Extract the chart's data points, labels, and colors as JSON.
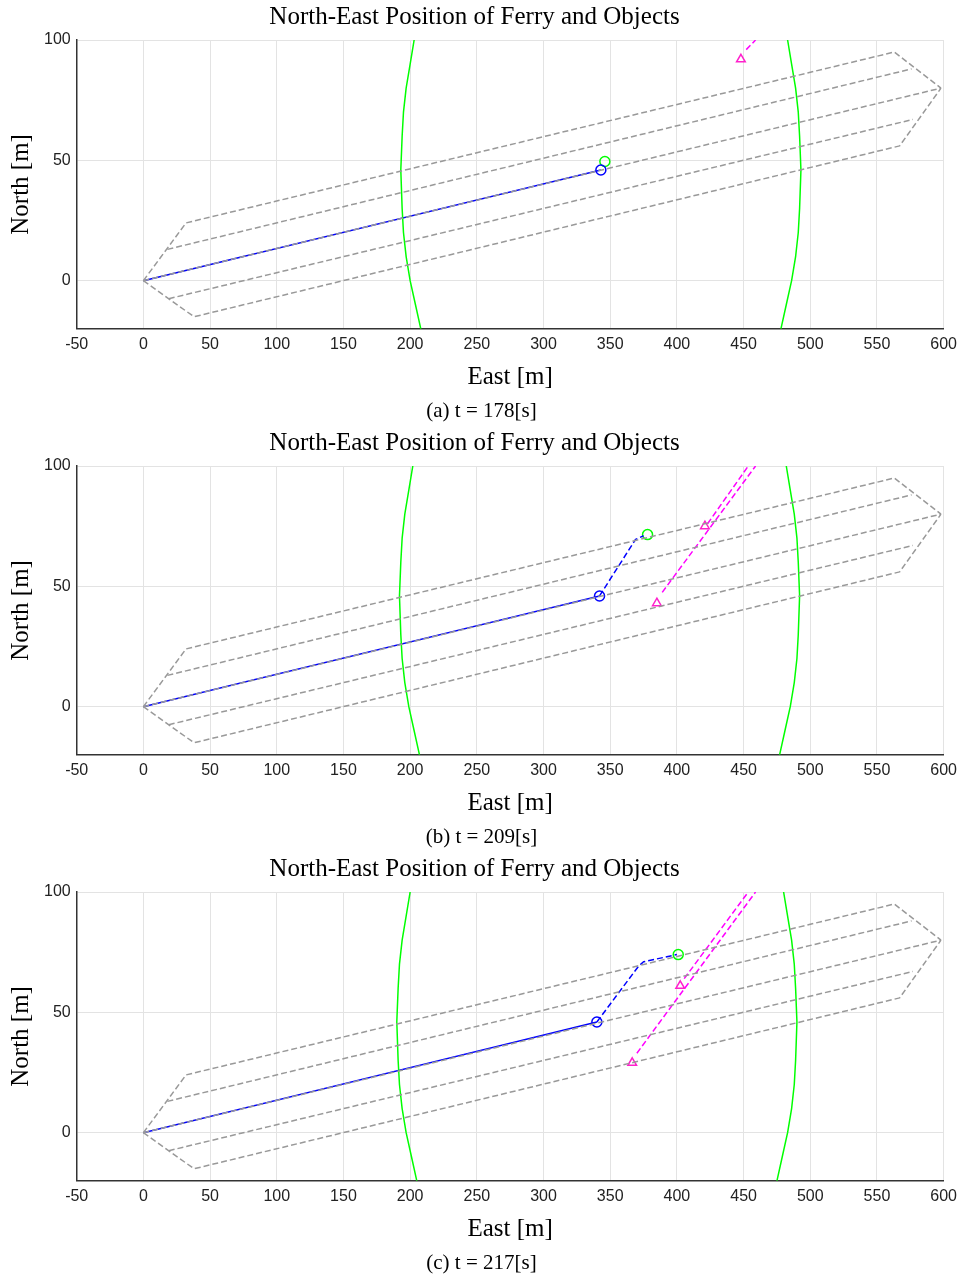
{
  "chart_data": [
    {
      "type": "line",
      "title": "North-East Position of Ferry and Objects",
      "xlabel": "East [m]",
      "ylabel": "North [m]",
      "annotations": [
        "(a) t = 178[s]"
      ],
      "xlim": [
        -50,
        600
      ],
      "ylim": [
        -20,
        100
      ],
      "xticks": [
        -50,
        0,
        50,
        100,
        150,
        200,
        250,
        300,
        350,
        400,
        450,
        500,
        550,
        600
      ],
      "yticks": [
        0,
        50,
        100
      ],
      "grid": true,
      "series": [
        {
          "color": "#999999",
          "line_style": "dashed",
          "x": [
            0,
            32,
            563,
            598
          ],
          "values": [
            0,
            24,
            95,
            80
          ]
        },
        {
          "color": "#999999",
          "line_style": "dashed",
          "x": [
            0,
            38,
            567,
            598
          ],
          "values": [
            0,
            -15,
            56,
            80
          ]
        },
        {
          "color": "#999999",
          "line_style": "dashed",
          "x": [
            18,
            576
          ],
          "values": [
            13,
            88
          ]
        },
        {
          "color": "#999999",
          "line_style": "dashed",
          "x": [
            0,
            598
          ],
          "values": [
            0,
            80
          ]
        },
        {
          "color": "#999999",
          "line_style": "dashed",
          "x": [
            19,
            577
          ],
          "values": [
            -7.5,
            67
          ]
        },
        {
          "color": "#00ff00",
          "line_style": "solid",
          "x": [
            208,
            204,
            200,
            197,
            195,
            194,
            193,
            194,
            195,
            197,
            200,
            203
          ],
          "values": [
            -20,
            -10,
            0,
            10,
            20,
            30,
            46,
            60,
            70,
            80,
            90,
            100
          ]
        },
        {
          "color": "#00ff00",
          "line_style": "solid",
          "x": [
            478,
            482,
            486,
            489,
            491,
            492,
            493,
            492,
            491,
            489,
            486,
            483
          ],
          "values": [
            -20,
            -10,
            0,
            10,
            20,
            30,
            46,
            60,
            70,
            80,
            90,
            100
          ]
        },
        {
          "color": "#0000ff",
          "line_style": "solid",
          "x": [
            0,
            343
          ],
          "values": [
            0,
            46
          ]
        },
        {
          "type": "scatter",
          "marker": "circle",
          "color": "#0000ff",
          "x": [
            343
          ],
          "values": [
            46
          ]
        },
        {
          "type": "scatter",
          "marker": "circle",
          "color": "#00ff00",
          "x": [
            346
          ],
          "values": [
            49.5
          ]
        },
        {
          "color": "#ff00ff",
          "line_style": "dashed",
          "x": [
            452,
            459
          ],
          "values": [
            96,
            100
          ]
        },
        {
          "type": "scatter",
          "marker": "triangle",
          "color": "#ff22cc",
          "x": [
            448
          ],
          "values": [
            92
          ]
        }
      ]
    },
    {
      "type": "line",
      "title": "North-East Position of Ferry and Objects",
      "xlabel": "East [m]",
      "ylabel": "North [m]",
      "annotations": [
        "(b) t = 209[s]"
      ],
      "xlim": [
        -50,
        600
      ],
      "ylim": [
        -20,
        100
      ],
      "xticks": [
        -50,
        0,
        50,
        100,
        150,
        200,
        250,
        300,
        350,
        400,
        450,
        500,
        550,
        600
      ],
      "yticks": [
        0,
        50,
        100
      ],
      "grid": true,
      "series": [
        {
          "color": "#999999",
          "line_style": "dashed",
          "x": [
            0,
            32,
            563,
            598
          ],
          "values": [
            0,
            24,
            95,
            80
          ]
        },
        {
          "color": "#999999",
          "line_style": "dashed",
          "x": [
            0,
            38,
            567,
            598
          ],
          "values": [
            0,
            -15,
            56,
            80
          ]
        },
        {
          "color": "#999999",
          "line_style": "dashed",
          "x": [
            18,
            576
          ],
          "values": [
            13,
            88
          ]
        },
        {
          "color": "#999999",
          "line_style": "dashed",
          "x": [
            0,
            598
          ],
          "values": [
            0,
            80
          ]
        },
        {
          "color": "#999999",
          "line_style": "dashed",
          "x": [
            19,
            577
          ],
          "values": [
            -7.5,
            67
          ]
        },
        {
          "color": "#00ff00",
          "line_style": "solid",
          "x": [
            207,
            203,
            199,
            196,
            194,
            193,
            192,
            193,
            194,
            196,
            199,
            202
          ],
          "values": [
            -20,
            -10,
            0,
            10,
            20,
            30,
            46,
            60,
            70,
            80,
            90,
            100
          ]
        },
        {
          "color": "#00ff00",
          "line_style": "solid",
          "x": [
            477,
            481,
            485,
            488,
            490,
            491,
            492,
            491,
            490,
            488,
            485,
            482
          ],
          "values": [
            -20,
            -10,
            0,
            10,
            20,
            30,
            46,
            60,
            70,
            80,
            90,
            100
          ]
        },
        {
          "color": "#0000ff",
          "line_style": "solid",
          "x": [
            0,
            342
          ],
          "values": [
            0,
            46
          ]
        },
        {
          "color": "#0000ff",
          "line_style": "dashed",
          "x": [
            342,
            369,
            375
          ],
          "values": [
            46,
            69.5,
            71
          ]
        },
        {
          "type": "scatter",
          "marker": "circle",
          "color": "#0000ff",
          "x": [
            342
          ],
          "values": [
            46
          ]
        },
        {
          "type": "scatter",
          "marker": "circle",
          "color": "#00ff00",
          "x": [
            378
          ],
          "values": [
            71.5
          ]
        },
        {
          "color": "#ff00ff",
          "line_style": "dashed",
          "x": [
            389,
            459
          ],
          "values": [
            47.5,
            100
          ]
        },
        {
          "color": "#ff00ff",
          "line_style": "dashed",
          "x": [
            423,
            453.5
          ],
          "values": [
            76,
            100
          ]
        },
        {
          "type": "scatter",
          "marker": "triangle",
          "color": "#ff22cc",
          "x": [
            385,
            421
          ],
          "values": [
            43,
            75
          ]
        }
      ]
    },
    {
      "type": "line",
      "title": "North-East Position of Ferry and Objects",
      "xlabel": "East [m]",
      "ylabel": "North [m]",
      "annotations": [
        "(c) t = 217[s]"
      ],
      "xlim": [
        -50,
        600
      ],
      "ylim": [
        -20,
        100
      ],
      "xticks": [
        -50,
        0,
        50,
        100,
        150,
        200,
        250,
        300,
        350,
        400,
        450,
        500,
        550,
        600
      ],
      "yticks": [
        0,
        50,
        100
      ],
      "grid": true,
      "series": [
        {
          "color": "#999999",
          "line_style": "dashed",
          "x": [
            0,
            32,
            563,
            598
          ],
          "values": [
            0,
            24,
            95,
            80
          ]
        },
        {
          "color": "#999999",
          "line_style": "dashed",
          "x": [
            0,
            38,
            567,
            598
          ],
          "values": [
            0,
            -15,
            56,
            80
          ]
        },
        {
          "color": "#999999",
          "line_style": "dashed",
          "x": [
            18,
            576
          ],
          "values": [
            13,
            88
          ]
        },
        {
          "color": "#999999",
          "line_style": "dashed",
          "x": [
            0,
            598
          ],
          "values": [
            0,
            80
          ]
        },
        {
          "color": "#999999",
          "line_style": "dashed",
          "x": [
            19,
            577
          ],
          "values": [
            -7.5,
            67
          ]
        },
        {
          "color": "#00ff00",
          "line_style": "solid",
          "x": [
            205,
            201,
            197,
            194,
            192,
            191,
            190,
            191,
            192,
            194,
            197,
            200
          ],
          "values": [
            -20,
            -10,
            0,
            10,
            20,
            30,
            46,
            60,
            70,
            80,
            90,
            100
          ]
        },
        {
          "color": "#00ff00",
          "line_style": "solid",
          "x": [
            475,
            479,
            483,
            486,
            488,
            489,
            490,
            489,
            488,
            486,
            483,
            480
          ],
          "values": [
            -20,
            -10,
            0,
            10,
            20,
            30,
            46,
            60,
            70,
            80,
            90,
            100
          ]
        },
        {
          "color": "#0000ff",
          "line_style": "solid",
          "x": [
            0,
            340
          ],
          "values": [
            0,
            46
          ]
        },
        {
          "color": "#0000ff",
          "line_style": "dashed",
          "x": [
            340,
            371,
            375,
            400
          ],
          "values": [
            46,
            69,
            71,
            74
          ]
        },
        {
          "type": "scatter",
          "marker": "circle",
          "color": "#0000ff",
          "x": [
            340
          ],
          "values": [
            46
          ]
        },
        {
          "type": "scatter",
          "marker": "circle",
          "color": "#00ff00",
          "x": [
            401
          ],
          "values": [
            74
          ]
        },
        {
          "color": "#ff00ff",
          "line_style": "dashed",
          "x": [
            370,
            459
          ],
          "values": [
            33,
            100
          ]
        },
        {
          "color": "#ff00ff",
          "line_style": "dashed",
          "x": [
            405.5,
            453.5
          ],
          "values": [
            64,
            100
          ]
        },
        {
          "type": "scatter",
          "marker": "triangle",
          "color": "#ff22cc",
          "x": [
            366.5,
            402.5
          ],
          "values": [
            29,
            61
          ]
        }
      ]
    }
  ]
}
